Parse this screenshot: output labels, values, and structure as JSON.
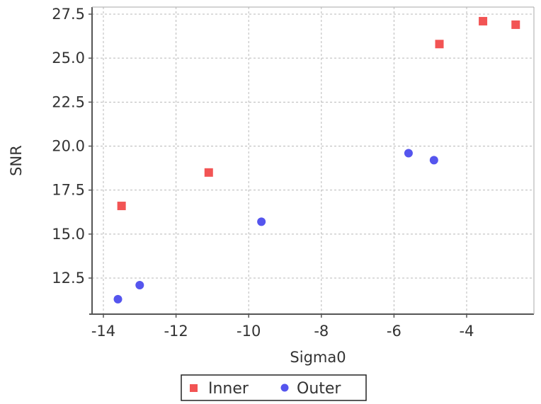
{
  "chart_data": {
    "type": "scatter",
    "xlabel": "Sigma0",
    "ylabel": "SNR",
    "xlim": [
      -14.2,
      0
    ],
    "ylim": [
      10.5,
      28.0
    ],
    "x_ticks": [
      -14,
      -12,
      -10,
      -8,
      -6,
      -4
    ],
    "y_ticks": [
      12.5,
      15.0,
      17.5,
      20.0,
      22.5,
      25.0,
      27.5
    ],
    "x_tick_labels": [
      "-14",
      "-12",
      "-10",
      "-8",
      "-6",
      "-4"
    ],
    "y_tick_labels": [
      "12.5",
      "15.0",
      "17.5",
      "20.0",
      "22.5",
      "25.0",
      "27.5"
    ],
    "grid": true,
    "legend_position": "bottom",
    "series": [
      {
        "name": "Inner",
        "marker": "square",
        "color": "#f25454",
        "points": [
          {
            "x": -13.5,
            "y": 16.6
          },
          {
            "x": -11.1,
            "y": 18.5
          },
          {
            "x": -4.75,
            "y": 25.8
          },
          {
            "x": -3.55,
            "y": 27.1
          },
          {
            "x": -2.65,
            "y": 26.9
          }
        ]
      },
      {
        "name": "Outer",
        "marker": "circle",
        "color": "#5555ee",
        "points": [
          {
            "x": -13.6,
            "y": 11.3
          },
          {
            "x": -13.0,
            "y": 12.1
          },
          {
            "x": -9.65,
            "y": 15.7
          },
          {
            "x": -5.6,
            "y": 19.6
          },
          {
            "x": -4.9,
            "y": 19.2
          }
        ]
      }
    ]
  }
}
